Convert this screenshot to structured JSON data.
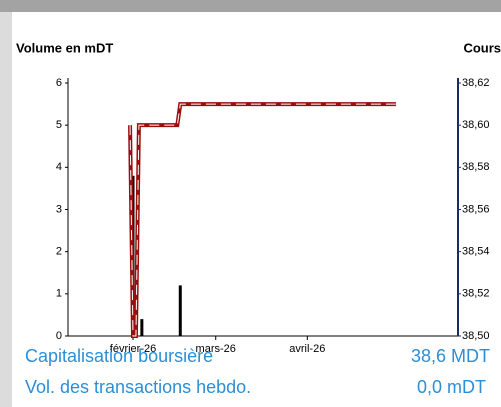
{
  "chart_data": {
    "type": "combo",
    "y_label": "Volume en mDT",
    "y2_label": "Cours",
    "xlim": [
      10,
      142
    ],
    "xticks": [
      {
        "value": 32,
        "label": "février-26"
      },
      {
        "value": 60,
        "label": "mars-26"
      },
      {
        "value": 91,
        "label": "avril-26"
      }
    ],
    "ylim": [
      0,
      6
    ],
    "yticks": [
      0,
      1,
      2,
      3,
      4,
      5,
      6
    ],
    "y2lim": [
      38.5,
      38.62
    ],
    "y2ticks": [
      {
        "value": 38.5,
        "label": "38,50"
      },
      {
        "value": 38.52,
        "label": "38,52"
      },
      {
        "value": 38.54,
        "label": "38,54"
      },
      {
        "value": 38.56,
        "label": "38,56"
      },
      {
        "value": 38.58,
        "label": "38,58"
      },
      {
        "value": 38.6,
        "label": "38,60"
      },
      {
        "value": 38.62,
        "label": "38,62"
      }
    ],
    "series": [
      {
        "kind": "bar",
        "color": "#000000",
        "x": [
          32,
          35,
          48
        ],
        "values": [
          3.8,
          0.4,
          1.2
        ]
      },
      {
        "kind": "line",
        "axis": "y2",
        "color": "#9b0d0d",
        "x": [
          31,
          32,
          33,
          34,
          47,
          48,
          121
        ],
        "values": [
          38.6,
          38.5,
          38.5,
          38.6,
          38.6,
          38.61,
          38.61
        ]
      }
    ]
  },
  "stats": [
    {
      "label": "Capitalisation boursière",
      "value": "38,6 MDT"
    },
    {
      "label": "Vol. des transactions hebdo.",
      "value": "0,0 mDT"
    }
  ]
}
